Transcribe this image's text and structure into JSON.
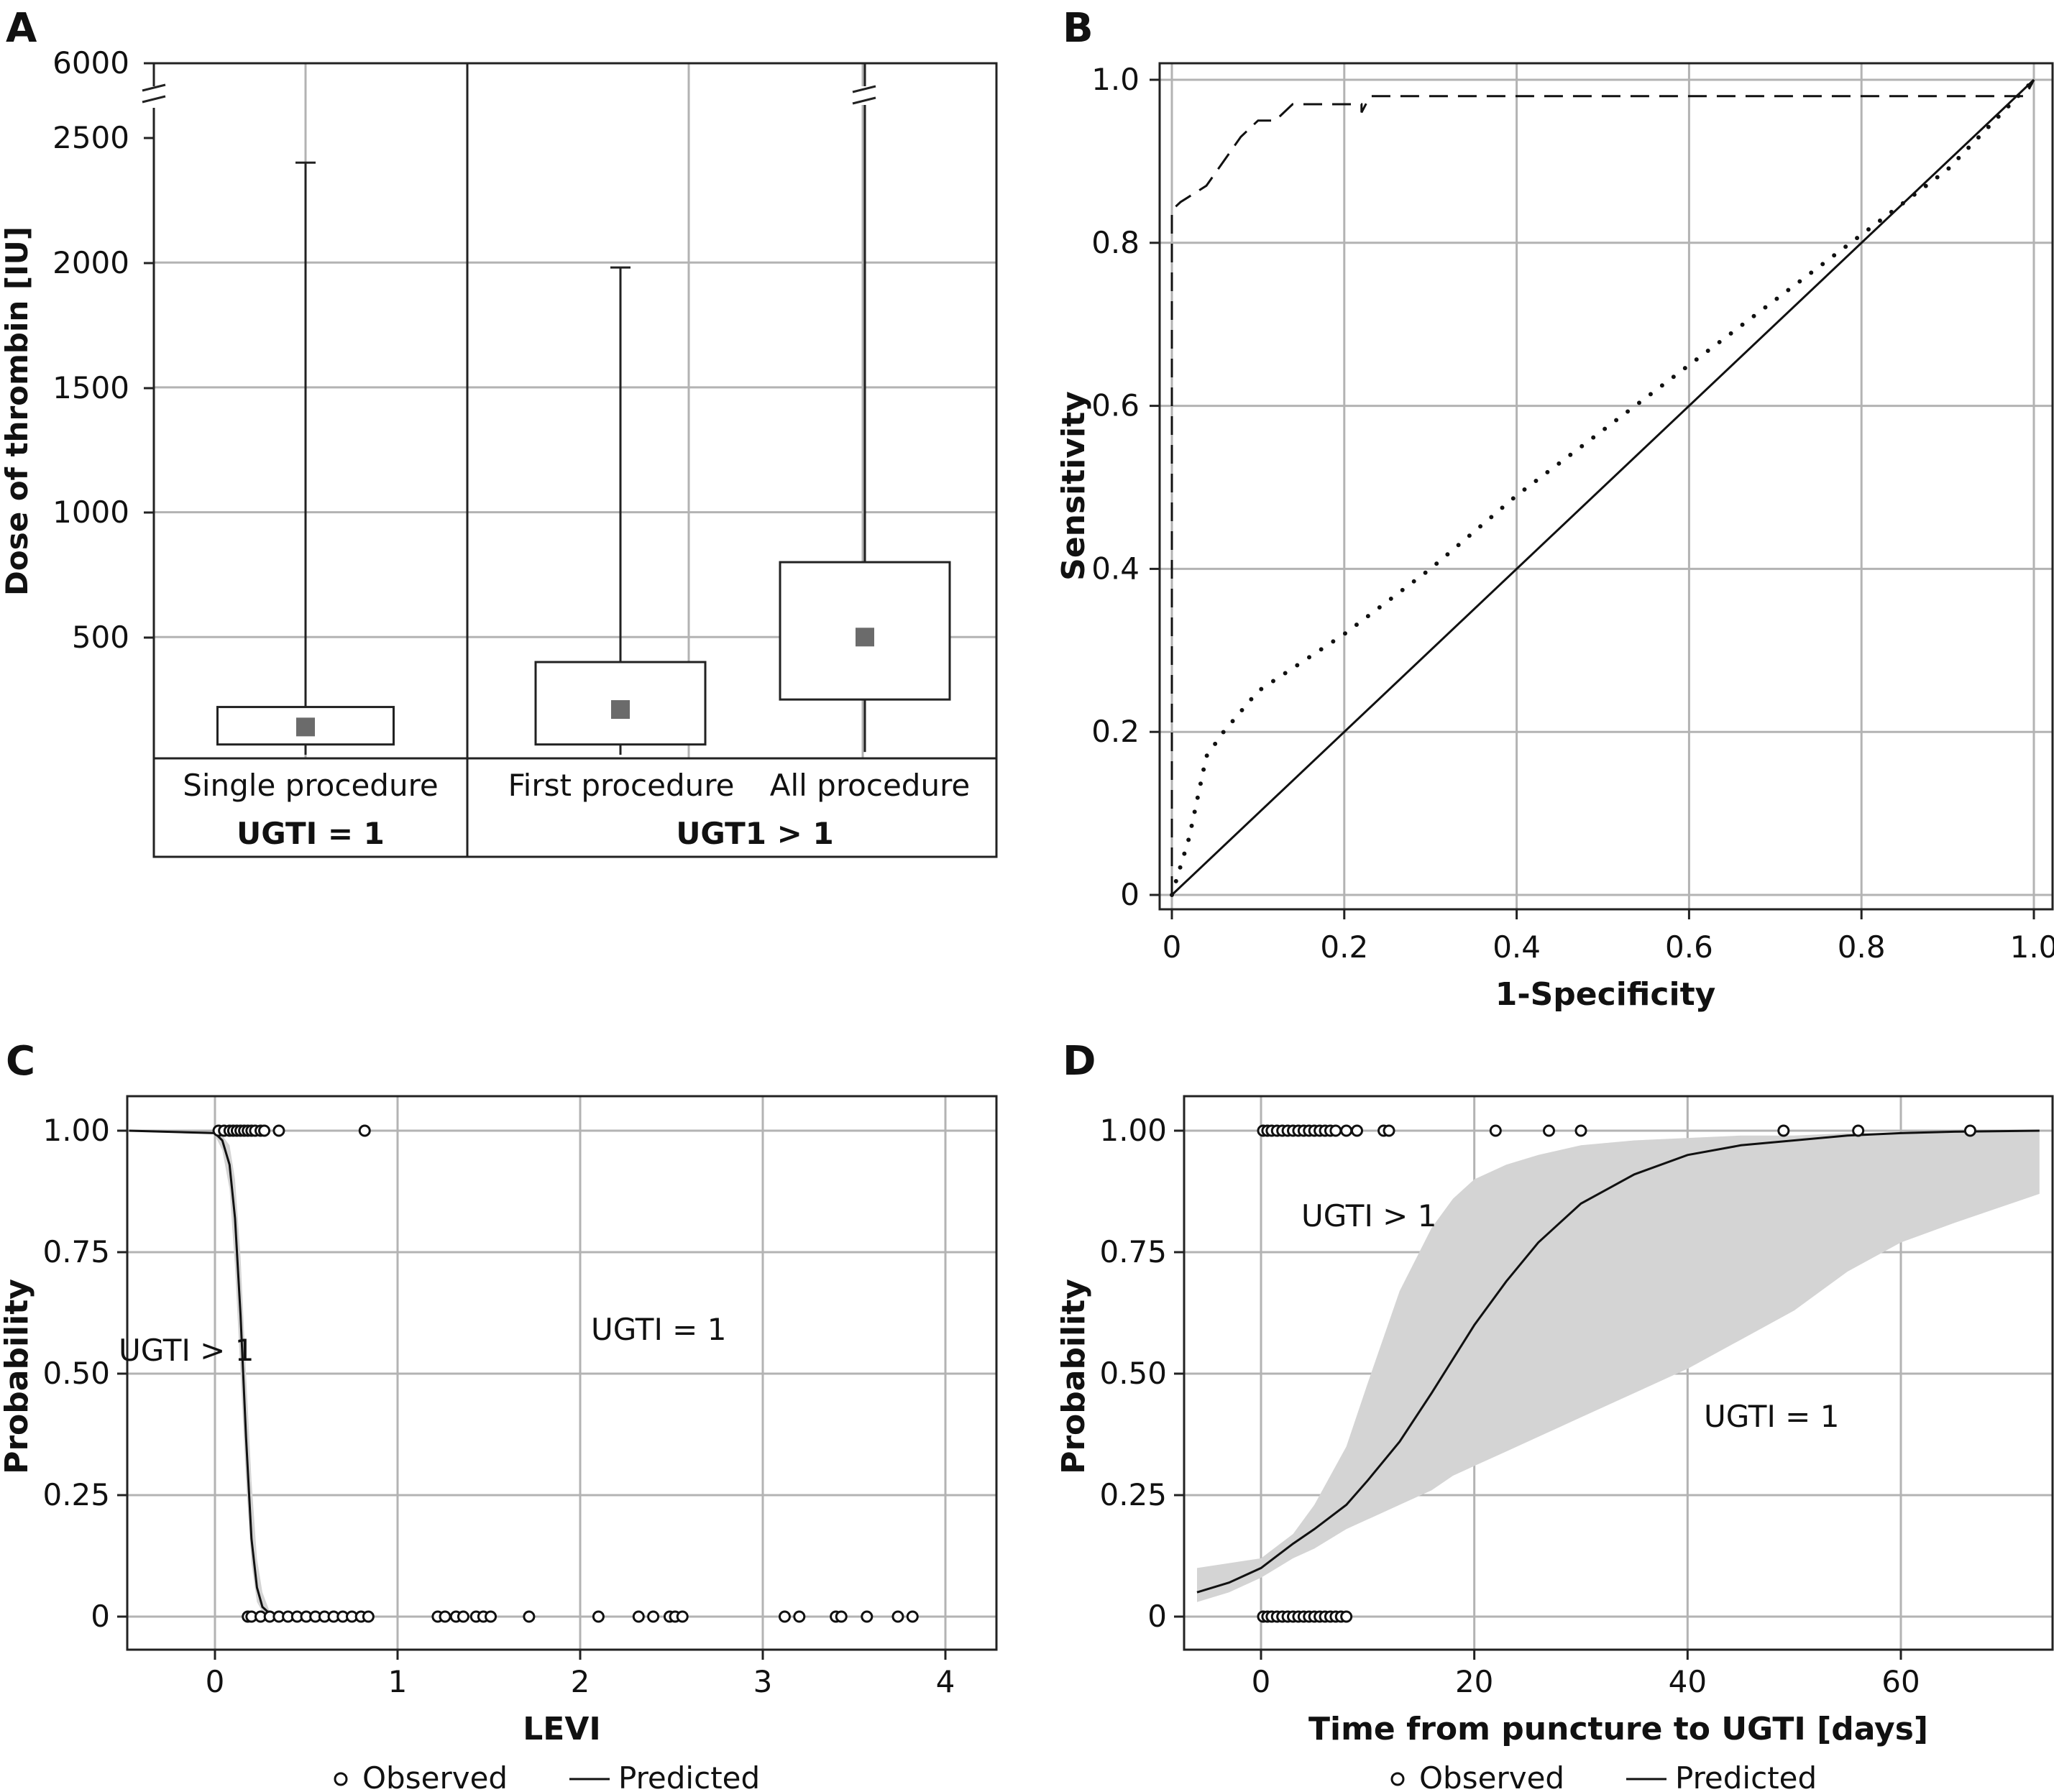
{
  "chart_data": [
    {
      "panel": "A",
      "type": "box",
      "ylabel": "Dose of thrombin [IU]",
      "yticks": [
        "6000",
        "2500",
        "2000",
        "1500",
        "1000",
        "500"
      ],
      "axis_break": true,
      "groups": [
        {
          "label": "Single procedure",
          "group": "UGTI = 1",
          "median": 140,
          "q1": 70,
          "q3": 220,
          "min": 0,
          "max": 2400
        },
        {
          "label": "First procedure",
          "group": "UGT1 > 1",
          "median": 210,
          "q1": 70,
          "q3": 400,
          "min": 0,
          "max": 1980
        },
        {
          "label": "All procedure",
          "group": "UGT1 > 1",
          "median": 500,
          "q1": 250,
          "q3": 800,
          "min": 40,
          "max": 6000
        }
      ],
      "group_labels": [
        "UGTI = 1",
        "UGT1 > 1"
      ]
    },
    {
      "panel": "B",
      "type": "line",
      "xlabel": "1-Specificity",
      "ylabel": "Sensitivity",
      "xticks": [
        "0",
        "0.2",
        "0.4",
        "0.6",
        "0.8",
        "1.0"
      ],
      "yticks": [
        "0",
        "0.2",
        "0.4",
        "0.6",
        "0.8",
        "1.0"
      ],
      "xlim": [
        0,
        1
      ],
      "ylim": [
        0,
        1
      ],
      "series": [
        {
          "style": "dashed",
          "x": [
            0,
            0,
            0.01,
            0.04,
            0.08,
            0.1,
            0.12,
            0.14,
            0.15,
            0.22,
            0.22,
            0.23,
            0.99,
            1.0
          ],
          "y": [
            0,
            0.84,
            0.85,
            0.87,
            0.93,
            0.95,
            0.95,
            0.97,
            0.97,
            0.97,
            0.96,
            0.98,
            0.98,
            1.0
          ]
        },
        {
          "style": "dotted",
          "x": [
            0,
            0.02,
            0.04,
            0.06,
            0.1,
            0.2,
            0.3,
            0.4,
            0.5,
            0.6,
            0.7,
            0.8,
            0.9,
            1.0
          ],
          "y": [
            0,
            0.07,
            0.17,
            0.2,
            0.25,
            0.32,
            0.4,
            0.49,
            0.57,
            0.65,
            0.73,
            0.81,
            0.89,
            1.0
          ]
        },
        {
          "style": "solid",
          "x": [
            0,
            1
          ],
          "y": [
            0,
            1
          ]
        }
      ]
    },
    {
      "panel": "C",
      "type": "scatter",
      "xlabel": "LEVI",
      "ylabel": "Probability",
      "xticks": [
        "0",
        "1",
        "2",
        "3",
        "4"
      ],
      "yticks": [
        "0",
        "0.25",
        "0.50",
        "0.75",
        "1.00"
      ],
      "xlim": [
        -0.47,
        4.27
      ],
      "ylim": [
        -0.05,
        1.05
      ],
      "annotations": [
        {
          "text": "UGTI > 1",
          "x": -0.22,
          "y": 0.55
        },
        {
          "text": "UGTI = 1",
          "x": 2.4,
          "y": 0.59
        }
      ],
      "observed_y1": [
        0.02,
        0.05,
        0.08,
        0.1,
        0.12,
        0.14,
        0.16,
        0.18,
        0.2,
        0.22,
        0.25,
        0.27,
        0.35,
        0.82
      ],
      "observed_y0": [
        0.18,
        0.2,
        0.25,
        0.3,
        0.35,
        0.4,
        0.45,
        0.5,
        0.55,
        0.6,
        0.65,
        0.7,
        0.75,
        0.8,
        0.84,
        1.22,
        1.26,
        1.32,
        1.36,
        1.43,
        1.47,
        1.51,
        1.72,
        2.1,
        2.32,
        2.4,
        2.49,
        2.52,
        2.56,
        3.12,
        3.2,
        3.4,
        3.43,
        3.57,
        3.74,
        3.82
      ],
      "predicted": {
        "x": [
          -0.47,
          0,
          0.04,
          0.08,
          0.11,
          0.14,
          0.17,
          0.2,
          0.23,
          0.26,
          0.3,
          0.35,
          0.84
        ],
        "y": [
          1.0,
          0.995,
          0.98,
          0.93,
          0.82,
          0.62,
          0.37,
          0.16,
          0.06,
          0.02,
          0.006,
          0.002,
          0.0
        ]
      },
      "band": {
        "x": [
          0,
          0.04,
          0.08,
          0.11,
          0.14,
          0.17,
          0.2,
          0.23,
          0.26,
          0.3,
          0.35
        ],
        "lower": [
          0.99,
          0.96,
          0.88,
          0.72,
          0.5,
          0.28,
          0.11,
          0.03,
          0.01,
          0.0,
          0.0
        ],
        "upper": [
          1.0,
          0.99,
          0.97,
          0.9,
          0.74,
          0.5,
          0.28,
          0.12,
          0.05,
          0.01,
          0.0
        ]
      },
      "legend": [
        "Observed",
        "Predicted"
      ]
    },
    {
      "panel": "D",
      "type": "scatter",
      "xlabel": "Time from puncture to UGTI [days]",
      "ylabel": "Probability",
      "xticks": [
        "0",
        "20",
        "40",
        "60"
      ],
      "yticks": [
        "0",
        "0.25",
        "0.50",
        "0.75",
        "1.00"
      ],
      "xlim": [
        -8,
        74
      ],
      "ylim": [
        -0.05,
        1.05
      ],
      "annotations": [
        {
          "text": "UGTI > 1",
          "x": 9.5,
          "y": 0.82
        },
        {
          "text": "UGTI = 1",
          "x": 47,
          "y": 0.41
        }
      ],
      "observed_y1": [
        0.2,
        0.6,
        1.0,
        1.5,
        2.0,
        2.5,
        3.0,
        3.5,
        4.0,
        4.5,
        5.0,
        5.5,
        6.0,
        6.5,
        7.0,
        8.0,
        9.0,
        11.5,
        12,
        22,
        27,
        30,
        49,
        56,
        66.5
      ],
      "observed_y0": [
        0.2,
        0.6,
        1.0,
        1.5,
        2.0,
        2.5,
        3.0,
        3.5,
        4.0,
        4.5,
        5.0,
        5.5,
        6.0,
        6.5,
        7.0,
        7.5,
        8.0
      ],
      "predicted": {
        "x": [
          -6,
          -3,
          0,
          3,
          5,
          8,
          10,
          13,
          16,
          18,
          20,
          23,
          26,
          30,
          35,
          40,
          45,
          50,
          55,
          60,
          65,
          73
        ],
        "y": [
          0.05,
          0.07,
          0.1,
          0.15,
          0.18,
          0.23,
          0.28,
          0.36,
          0.46,
          0.53,
          0.6,
          0.69,
          0.77,
          0.85,
          0.91,
          0.95,
          0.97,
          0.98,
          0.99,
          0.995,
          0.998,
          1.0
        ]
      },
      "band": {
        "x": [
          -6,
          -3,
          0,
          3,
          5,
          8,
          10,
          13,
          16,
          18,
          20,
          23,
          26,
          30,
          35,
          40,
          45,
          50,
          55,
          60,
          65,
          73
        ],
        "lower": [
          0.03,
          0.05,
          0.08,
          0.12,
          0.14,
          0.18,
          0.2,
          0.23,
          0.26,
          0.29,
          0.31,
          0.34,
          0.37,
          0.41,
          0.46,
          0.51,
          0.57,
          0.63,
          0.71,
          0.77,
          0.81,
          0.87
        ],
        "upper": [
          0.1,
          0.11,
          0.12,
          0.17,
          0.23,
          0.35,
          0.48,
          0.67,
          0.8,
          0.86,
          0.9,
          0.93,
          0.95,
          0.97,
          0.98,
          0.985,
          0.99,
          0.99,
          0.995,
          0.995,
          0.998,
          1.0
        ]
      },
      "legend": [
        "Observed",
        "Predicted"
      ]
    }
  ],
  "panels": {
    "A": {
      "letter": "A"
    },
    "B": {
      "letter": "B"
    },
    "C": {
      "letter": "C"
    },
    "D": {
      "letter": "D"
    }
  },
  "colors": {
    "box_median": "#6b6b6b",
    "band": "#d4d4d4",
    "grid": "#b3b3b3",
    "line": "#111111"
  }
}
